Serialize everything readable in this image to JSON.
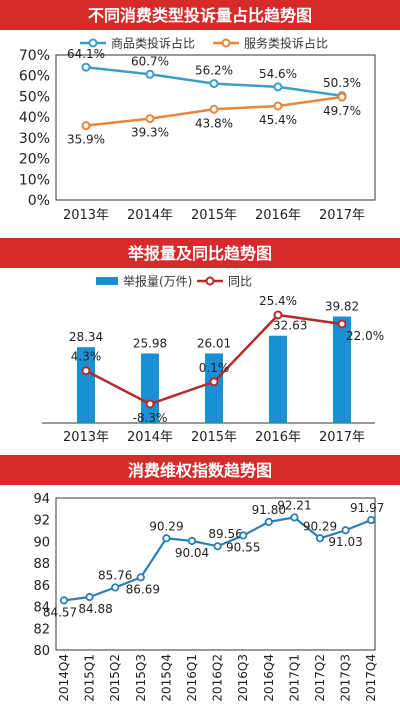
{
  "chart_data": [
    {
      "type": "line",
      "title": "不同消费类型投诉量占比趋势图",
      "categories": [
        "2013年",
        "2014年",
        "2015年",
        "2016年",
        "2017年"
      ],
      "series": [
        {
          "name": "商品类投诉占比",
          "values": [
            64.1,
            60.7,
            56.2,
            54.6,
            50.3
          ],
          "labels": [
            "64.1%",
            "60.7%",
            "56.2%",
            "54.6%",
            "50.3%"
          ],
          "color": "#3a9ec9"
        },
        {
          "name": "服务类投诉占比",
          "values": [
            35.9,
            39.3,
            43.8,
            45.4,
            49.7
          ],
          "labels": [
            "35.9%",
            "39.3%",
            "43.8%",
            "45.4%",
            "49.7%"
          ],
          "color": "#e8853a"
        }
      ],
      "ylim": [
        0,
        70
      ],
      "yticks": [
        "0%",
        "10%",
        "20%",
        "30%",
        "40%",
        "50%",
        "60%",
        "70%"
      ],
      "legend": "top"
    },
    {
      "type": "bar",
      "title": "举报量及同比趋势图",
      "categories": [
        "2013年",
        "2014年",
        "2015年",
        "2016年",
        "2017年"
      ],
      "series": [
        {
          "name": "举报量(万件)",
          "values": [
            28.34,
            25.98,
            26.01,
            32.63,
            39.82
          ],
          "labels": [
            "28.34",
            "25.98",
            "26.01",
            "32.63",
            "39.82"
          ],
          "color": "#1a8fd3"
        },
        {
          "name": "同比",
          "values": [
            4.3,
            -8.3,
            0.1,
            25.4,
            22.0
          ],
          "labels": [
            "4.3%",
            "-8.3%",
            "0.1%",
            "25.4%",
            "22.0%"
          ],
          "color": "#b52a2a"
        }
      ],
      "legend": "top"
    },
    {
      "type": "line",
      "title": "消费维权指数趋势图",
      "categories": [
        "2014Q4",
        "2015Q1",
        "2015Q2",
        "2015Q3",
        "2015Q4",
        "2016Q1",
        "2016Q2",
        "2016Q3",
        "2016Q4",
        "2017Q1",
        "2017Q2",
        "2017Q3",
        "2017Q4"
      ],
      "series": [
        {
          "values": [
            84.57,
            84.88,
            85.76,
            86.69,
            90.29,
            90.04,
            89.56,
            90.55,
            91.8,
            92.21,
            90.29,
            91.03,
            91.97
          ],
          "labels": [
            "84.57",
            "84.88",
            "85.76",
            "86.69",
            "90.29",
            "90.04",
            "89.56",
            "90.55",
            "91.80",
            "92.21",
            "90.29",
            "91.03",
            "91.97"
          ],
          "color": "#2a7fb5"
        }
      ],
      "ylim": [
        80,
        94
      ],
      "yticks": [
        "80",
        "82",
        "84",
        "86",
        "88",
        "90",
        "92",
        "94"
      ]
    }
  ]
}
